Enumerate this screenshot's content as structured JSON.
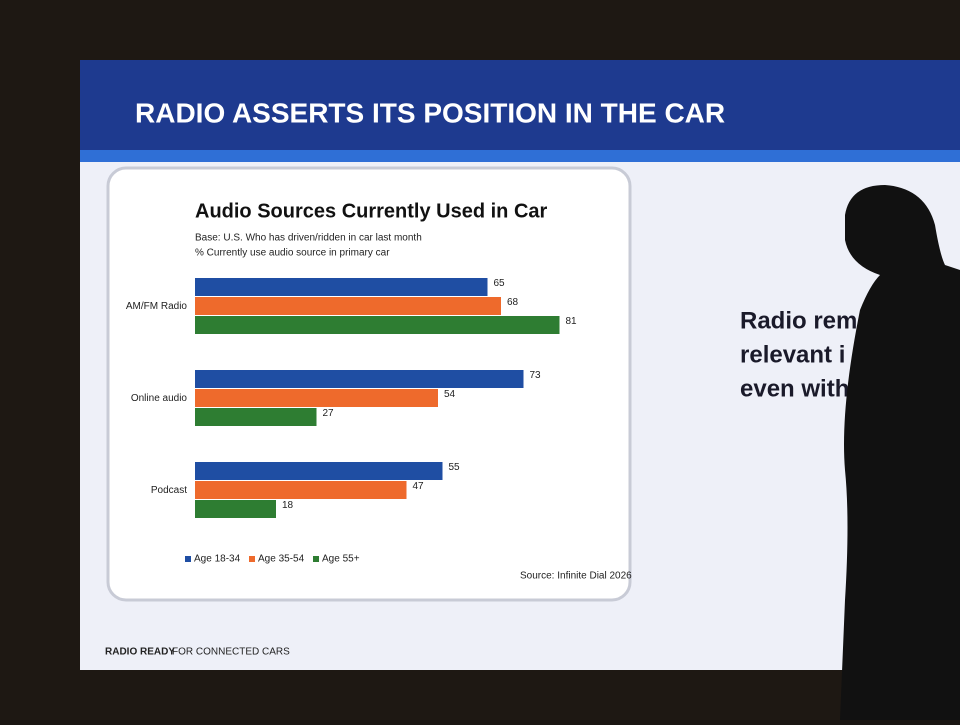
{
  "slide": {
    "title": "RADIO ASSERTS ITS POSITION IN THE CAR",
    "side_text": [
      "Radio rema",
      "relevant i",
      "even with"
    ],
    "footer_bold": "RADIO READY",
    "footer": "FOR CONNECTED CARS"
  },
  "chart_data": {
    "type": "hbar",
    "title": "Audio Sources Currently Used in Car",
    "subtitle": [
      "Base: U.S. Who has driven/ridden in car last month",
      "% Currently use audio source in primary car"
    ],
    "categories": [
      "AM/FM Radio",
      "Online audio",
      "Podcast"
    ],
    "series": [
      {
        "name": "Age 18-34",
        "color": "#1f4ea3",
        "values": [
          65,
          73,
          55
        ]
      },
      {
        "name": "Age 35-54",
        "color": "#ee6a2c",
        "values": [
          68,
          54,
          47
        ]
      },
      {
        "name": "Age 55+",
        "color": "#2e7d32",
        "values": [
          81,
          27,
          18
        ]
      }
    ],
    "source": "Source: Infinite Dial 2026"
  }
}
